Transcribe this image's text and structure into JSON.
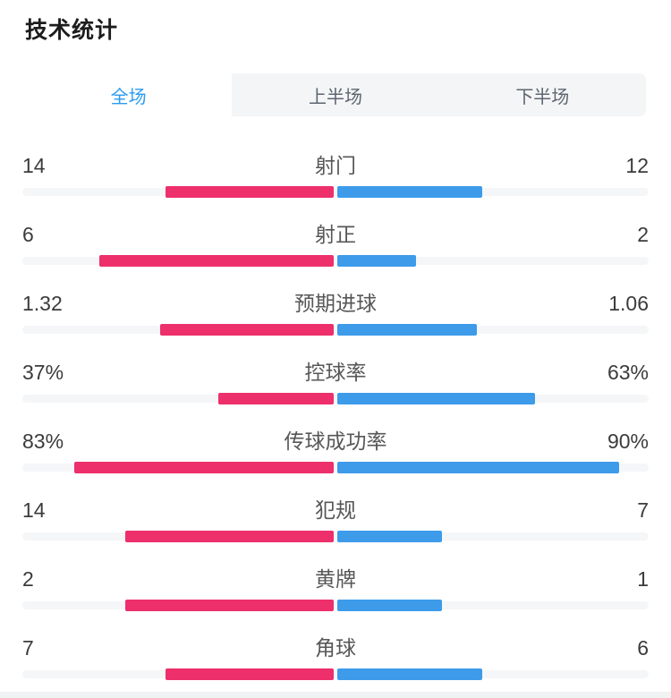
{
  "header": {
    "title": "技术统计"
  },
  "tabs": {
    "items": [
      {
        "label": "全场",
        "active": true
      },
      {
        "label": "上半场",
        "active": false
      },
      {
        "label": "下半场",
        "active": false
      }
    ]
  },
  "colors": {
    "home_bar": "#ED2F6B",
    "away_bar": "#3D9BEA",
    "active_tab_text": "#2B9BF0",
    "tab_bar_bg": "#F4F5F6",
    "track": "#F5F6F8"
  },
  "stats": {
    "rows": [
      {
        "label": "射门",
        "left_value": "14",
        "right_value": "12",
        "left_bar_pct": 26.9,
        "right_bar_pct": 23.1
      },
      {
        "label": "射正",
        "left_value": "6",
        "right_value": "2",
        "left_bar_pct": 37.5,
        "right_bar_pct": 12.5
      },
      {
        "label": "预期进球",
        "left_value": "1.32",
        "right_value": "1.06",
        "left_bar_pct": 27.7,
        "right_bar_pct": 22.3
      },
      {
        "label": "控球率",
        "left_value": "37%",
        "right_value": "63%",
        "left_bar_pct": 18.5,
        "right_bar_pct": 31.5
      },
      {
        "label": "传球成功率",
        "left_value": "83%",
        "right_value": "90%",
        "left_bar_pct": 41.5,
        "right_bar_pct": 45.0
      },
      {
        "label": "犯规",
        "left_value": "14",
        "right_value": "7",
        "left_bar_pct": 33.3,
        "right_bar_pct": 16.7
      },
      {
        "label": "黄牌",
        "left_value": "2",
        "right_value": "1",
        "left_bar_pct": 33.3,
        "right_bar_pct": 16.7
      },
      {
        "label": "角球",
        "left_value": "7",
        "right_value": "6",
        "left_bar_pct": 26.9,
        "right_bar_pct": 23.1
      }
    ]
  },
  "chart_data": {
    "type": "bar",
    "title": "技术统计",
    "categories": [
      "射门",
      "射正",
      "预期进球",
      "控球率",
      "传球成功率",
      "犯规",
      "黄牌",
      "角球"
    ],
    "series": [
      {
        "name": "home-left-pink",
        "color": "#ED2F6B",
        "values": [
          14,
          6,
          1.32,
          37,
          83,
          14,
          2,
          7
        ]
      },
      {
        "name": "away-right-blue",
        "color": "#3D9BEA",
        "values": [
          12,
          2,
          1.06,
          63,
          90,
          7,
          1,
          6
        ]
      }
    ],
    "layout": "diverging-from-center, bar length = value share of half track"
  }
}
